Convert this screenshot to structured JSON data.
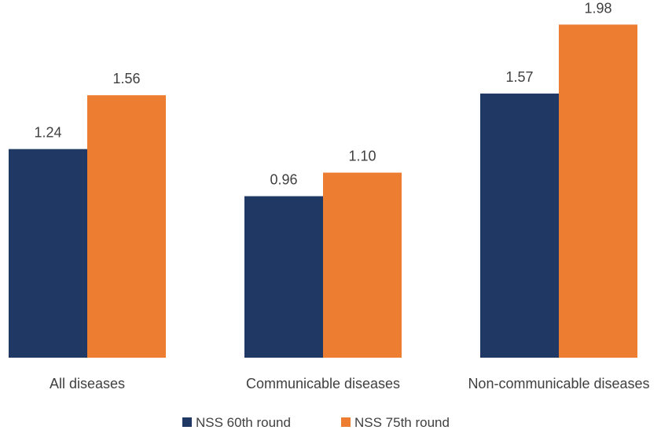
{
  "chart_data": {
    "type": "bar",
    "categories": [
      "All diseases",
      "Communicable diseases",
      "Non-communicable diseases"
    ],
    "series": [
      {
        "name": "NSS 60th round",
        "values": [
          1.24,
          0.96,
          1.57
        ],
        "labels": [
          "1.24",
          "0.96",
          "1.57"
        ],
        "color": "#203864"
      },
      {
        "name": "NSS 75th round",
        "values": [
          1.56,
          1.1,
          1.98
        ],
        "labels": [
          "1.56",
          "1.10",
          "1.98"
        ],
        "color": "#ED7D31"
      }
    ],
    "ylim": [
      0,
      2.2
    ],
    "grid": false,
    "legend_position": "bottom",
    "title": "",
    "xlabel": "",
    "ylabel": ""
  }
}
